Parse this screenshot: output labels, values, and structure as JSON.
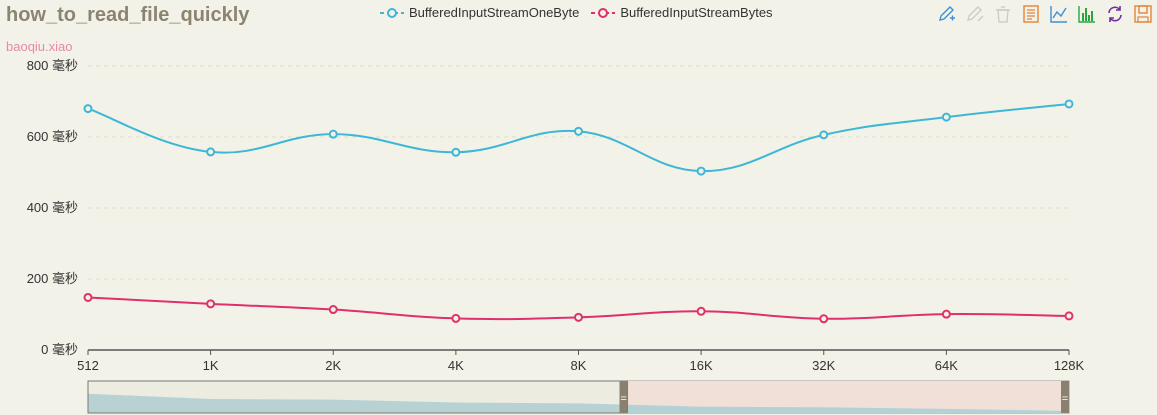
{
  "chart_data": {
    "type": "line",
    "title": "how_to_read_file_quickly",
    "subtitle": "baoqiu.xiao",
    "categories": [
      "512",
      "1K",
      "2K",
      "4K",
      "8K",
      "16K",
      "32K",
      "64K",
      "128K"
    ],
    "series": [
      {
        "name": "BufferedInputStreamOneByte",
        "color": "#3db7d6",
        "values": [
          680,
          558,
          608,
          557,
          616,
          504,
          606,
          656,
          693
        ]
      },
      {
        "name": "BufferedInputStreamBytes",
        "color": "#e0306c",
        "values": [
          148,
          130,
          114,
          89,
          92,
          109,
          88,
          101,
          96
        ]
      }
    ],
    "yaxis": {
      "min": 0,
      "max": 800,
      "ticks": [
        0,
        200,
        400,
        600,
        800
      ],
      "tick_labels": [
        "0 毫秒",
        "200 毫秒",
        "400 毫秒",
        "600 毫秒",
        "800 毫秒"
      ]
    },
    "grid": true,
    "legend_position": "top-center",
    "datazoom": {
      "range": [
        0,
        0.55
      ],
      "handle_glyph": "="
    }
  },
  "toolbox": {
    "icons": [
      "mark-icon",
      "mark-undo-icon",
      "mark-clear-icon",
      "data-view-icon",
      "line-chart-icon",
      "bar-chart-icon",
      "restore-icon",
      "save-image-icon"
    ],
    "colors": {
      "mark": "#3f8fd8",
      "disabled": "#cccccc",
      "dataview": "#e0853a",
      "line": "#3f8fd8",
      "bar": "#2aa540",
      "restore": "#6a2ea0",
      "save": "#e0853a"
    }
  }
}
